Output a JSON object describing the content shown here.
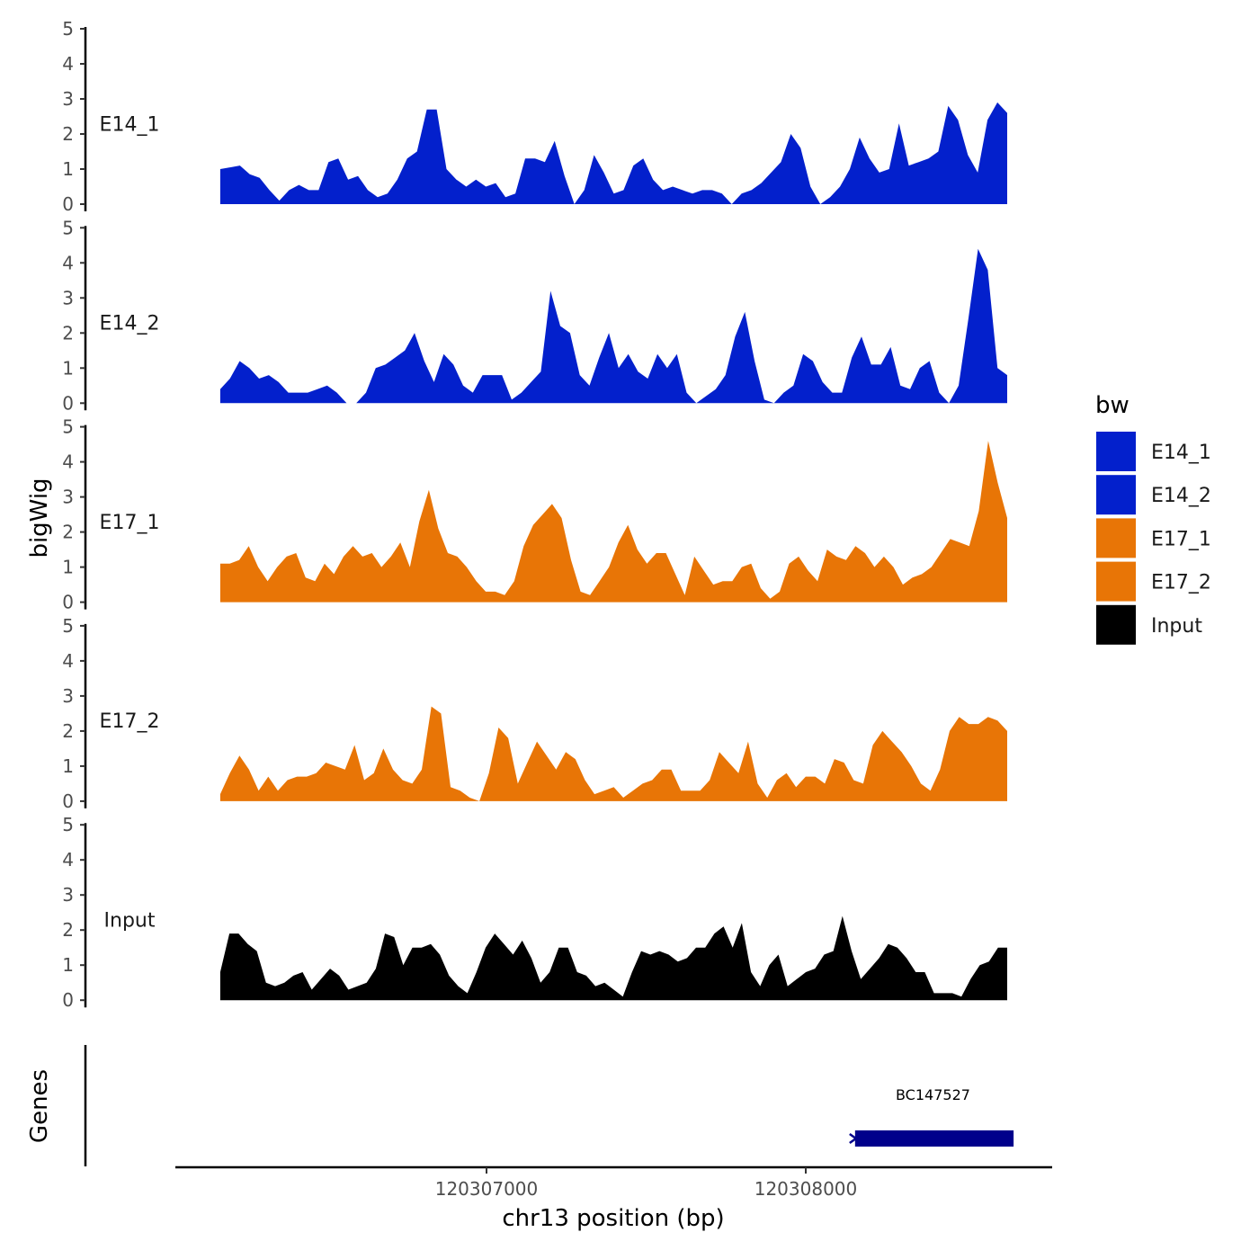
{
  "chart_data": {
    "type": "area",
    "title": "",
    "xlabel": "chr13 position (bp)",
    "ylabel": "bigWig",
    "genes_label": "Genes",
    "x_range": [
      120306166,
      120308631
    ],
    "xlim": [
      120305200,
      120309000
    ],
    "x_ticks": [
      120307000,
      120308000
    ],
    "x_tick_labels": [
      "120307000",
      "120308000"
    ],
    "ylim": [
      0,
      5
    ],
    "y_ticks": [
      "0",
      "1",
      "2",
      "3",
      "4",
      "5"
    ],
    "legend": {
      "title": "bw",
      "placement": "right",
      "entries": [
        {
          "label": "E14_1",
          "color": "#0320CC"
        },
        {
          "label": "E14_2",
          "color": "#0320CC"
        },
        {
          "label": "E17_1",
          "color": "#E87506"
        },
        {
          "label": "E17_2",
          "color": "#E87506"
        },
        {
          "label": "Input",
          "color": "#000000"
        }
      ]
    },
    "series": [
      {
        "name": "E14_1",
        "color": "#0320CC",
        "values": [
          1.0,
          1.05,
          1.1,
          0.85,
          0.75,
          0.4,
          0.1,
          0.4,
          0.55,
          0.4,
          0.4,
          1.2,
          1.3,
          0.7,
          0.8,
          0.4,
          0.2,
          0.3,
          0.7,
          1.3,
          1.5,
          2.7,
          2.7,
          1.0,
          0.7,
          0.5,
          0.7,
          0.5,
          0.6,
          0.2,
          0.3,
          1.3,
          1.3,
          1.2,
          1.8,
          0.8,
          0.0,
          0.4,
          1.4,
          0.9,
          0.3,
          0.4,
          1.1,
          1.3,
          0.7,
          0.4,
          0.5,
          0.4,
          0.3,
          0.4,
          0.4,
          0.3,
          0.0,
          0.3,
          0.4,
          0.6,
          0.9,
          1.2,
          2.0,
          1.6,
          0.5,
          0.0,
          0.2,
          0.5,
          1.0,
          1.9,
          1.3,
          0.9,
          1.0,
          2.3,
          1.1,
          1.2,
          1.3,
          1.5,
          2.8,
          2.4,
          1.4,
          0.9,
          2.4,
          2.9,
          2.6
        ]
      },
      {
        "name": "E14_2",
        "color": "#0320CC",
        "values": [
          0.4,
          0.7,
          1.2,
          1.0,
          0.7,
          0.8,
          0.6,
          0.3,
          0.3,
          0.3,
          0.4,
          0.5,
          0.3,
          0.0,
          0.0,
          0.3,
          1.0,
          1.1,
          1.3,
          1.5,
          2.0,
          1.2,
          0.6,
          1.4,
          1.1,
          0.5,
          0.3,
          0.8,
          0.8,
          0.8,
          0.1,
          0.3,
          0.6,
          0.9,
          3.2,
          2.2,
          2.0,
          0.8,
          0.5,
          1.3,
          2.0,
          1.0,
          1.4,
          0.9,
          0.7,
          1.4,
          1.0,
          1.4,
          0.3,
          0.0,
          0.2,
          0.4,
          0.8,
          1.9,
          2.6,
          1.2,
          0.1,
          0.0,
          0.3,
          0.5,
          1.4,
          1.2,
          0.6,
          0.3,
          0.3,
          1.3,
          1.9,
          1.1,
          1.1,
          1.6,
          0.5,
          0.4,
          1.0,
          1.2,
          0.3,
          0.0,
          0.5,
          2.4,
          4.4,
          3.8,
          1.0,
          0.8
        ]
      },
      {
        "name": "E17_1",
        "color": "#E87506",
        "values": [
          1.1,
          1.1,
          1.2,
          1.6,
          1.0,
          0.6,
          1.0,
          1.3,
          1.4,
          0.7,
          0.6,
          1.1,
          0.8,
          1.3,
          1.6,
          1.3,
          1.4,
          1.0,
          1.3,
          1.7,
          1.0,
          2.3,
          3.2,
          2.1,
          1.4,
          1.3,
          1.0,
          0.6,
          0.3,
          0.3,
          0.2,
          0.6,
          1.6,
          2.2,
          2.5,
          2.8,
          2.4,
          1.2,
          0.3,
          0.2,
          0.6,
          1.0,
          1.7,
          2.2,
          1.5,
          1.1,
          1.4,
          1.4,
          0.8,
          0.2,
          1.3,
          0.9,
          0.5,
          0.6,
          0.6,
          1.0,
          1.1,
          0.4,
          0.1,
          0.3,
          1.1,
          1.3,
          0.9,
          0.6,
          1.5,
          1.3,
          1.2,
          1.6,
          1.4,
          1.0,
          1.3,
          1.0,
          0.5,
          0.7,
          0.8,
          1.0,
          1.4,
          1.8,
          1.7,
          1.6,
          2.6,
          4.6,
          3.4,
          2.4
        ]
      },
      {
        "name": "E17_2",
        "color": "#E87506",
        "values": [
          0.2,
          0.8,
          1.3,
          0.9,
          0.3,
          0.7,
          0.3,
          0.6,
          0.7,
          0.7,
          0.8,
          1.1,
          1.0,
          0.9,
          1.6,
          0.6,
          0.8,
          1.5,
          0.9,
          0.6,
          0.5,
          0.9,
          2.7,
          2.5,
          0.4,
          0.3,
          0.1,
          0.0,
          0.8,
          2.1,
          1.8,
          0.5,
          1.1,
          1.7,
          1.3,
          0.9,
          1.4,
          1.2,
          0.6,
          0.2,
          0.3,
          0.4,
          0.1,
          0.3,
          0.5,
          0.6,
          0.9,
          0.9,
          0.3,
          0.3,
          0.3,
          0.6,
          1.4,
          1.1,
          0.8,
          1.7,
          0.5,
          0.1,
          0.6,
          0.8,
          0.4,
          0.7,
          0.7,
          0.5,
          1.2,
          1.1,
          0.6,
          0.5,
          1.6,
          2.0,
          1.7,
          1.4,
          1.0,
          0.5,
          0.3,
          0.9,
          2.0,
          2.4,
          2.2,
          2.2,
          2.4,
          2.3,
          2.0
        ]
      },
      {
        "name": "Input",
        "color": "#000000",
        "values": [
          0.8,
          1.9,
          1.9,
          1.6,
          1.4,
          0.5,
          0.4,
          0.5,
          0.7,
          0.8,
          0.3,
          0.6,
          0.9,
          0.7,
          0.3,
          0.4,
          0.5,
          0.9,
          1.9,
          1.8,
          1.0,
          1.5,
          1.5,
          1.6,
          1.3,
          0.7,
          0.4,
          0.2,
          0.8,
          1.5,
          1.9,
          1.6,
          1.3,
          1.7,
          1.2,
          0.5,
          0.8,
          1.5,
          1.5,
          0.8,
          0.7,
          0.4,
          0.5,
          0.3,
          0.1,
          0.8,
          1.4,
          1.3,
          1.4,
          1.3,
          1.1,
          1.2,
          1.5,
          1.5,
          1.9,
          2.1,
          1.5,
          2.2,
          0.8,
          0.4,
          1.0,
          1.3,
          0.4,
          0.6,
          0.8,
          0.9,
          1.3,
          1.4,
          2.4,
          1.4,
          0.6,
          0.9,
          1.2,
          1.6,
          1.5,
          1.2,
          0.8,
          0.8,
          0.2,
          0.2,
          0.2,
          0.1,
          0.6,
          1.0,
          1.1,
          1.5,
          1.5
        ]
      }
    ],
    "genes": [
      {
        "name": "BC147527",
        "start": 120308146,
        "end": 120308651,
        "strand": "+",
        "color": "#00008B"
      }
    ]
  }
}
